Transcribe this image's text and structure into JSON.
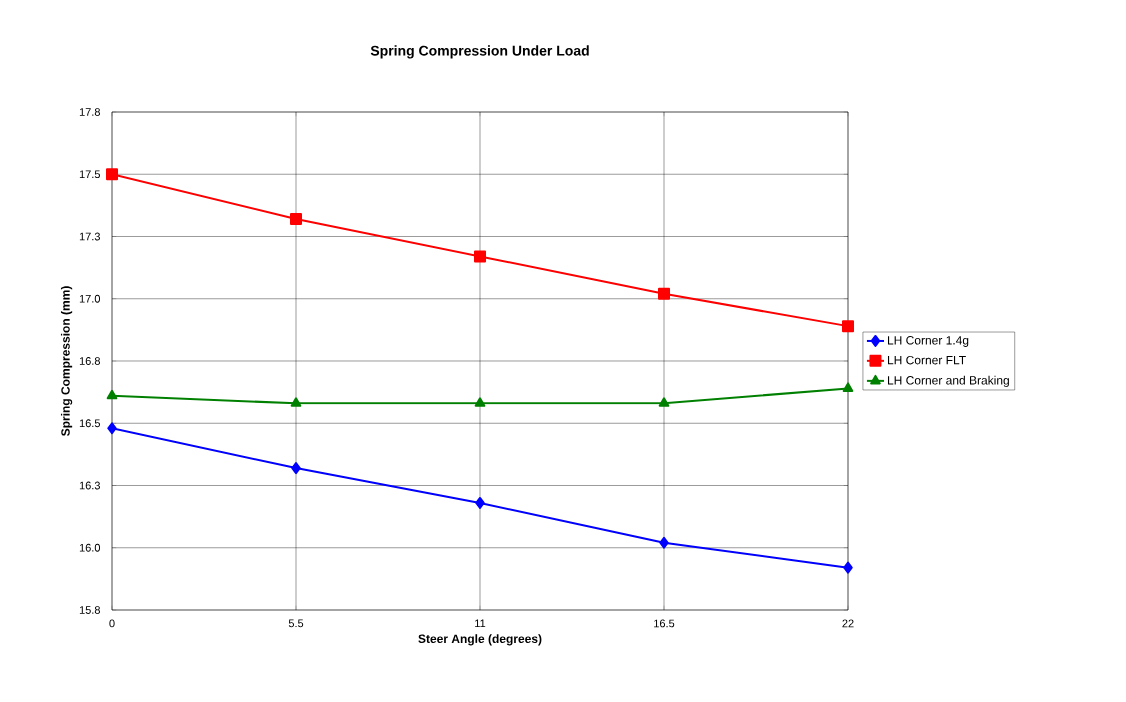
{
  "chart_data": {
    "type": "line",
    "title": "Spring Compression Under Load",
    "xlabel": "Steer Angle (degrees)",
    "ylabel": "Spring Compression (mm)",
    "x": [
      0,
      5.5,
      11,
      16.5,
      22
    ],
    "series": [
      {
        "name": "LH Corner 1.4g",
        "color": "#0000ff",
        "marker": "diamond",
        "values": [
          16.48,
          16.32,
          16.18,
          16.02,
          15.92
        ]
      },
      {
        "name": "LH Corner FLT",
        "color": "#ff0000",
        "marker": "square",
        "values": [
          17.5,
          17.32,
          17.17,
          17.02,
          16.89
        ]
      },
      {
        "name": "LH Corner and Braking",
        "color": "#008000",
        "marker": "triangle",
        "values": [
          16.61,
          16.58,
          16.58,
          16.58,
          16.64
        ]
      }
    ],
    "xlim": [
      0,
      22
    ],
    "xticks": [
      0,
      5.5,
      11,
      16.5,
      22
    ],
    "ylim": [
      15.75,
      17.75
    ],
    "yticks": [
      {
        "value": 15.75,
        "label": "15.8"
      },
      {
        "value": 16.0,
        "label": "16.0"
      },
      {
        "value": 16.25,
        "label": "16.3"
      },
      {
        "value": 16.5,
        "label": "16.5"
      },
      {
        "value": 16.75,
        "label": "16.8"
      },
      {
        "value": 17.0,
        "label": "17.0"
      },
      {
        "value": 17.25,
        "label": "17.3"
      },
      {
        "value": 17.5,
        "label": "17.5"
      },
      {
        "value": 17.75,
        "label": "17.8"
      }
    ],
    "grid": true,
    "legend": "right",
    "line_style": "solid"
  }
}
